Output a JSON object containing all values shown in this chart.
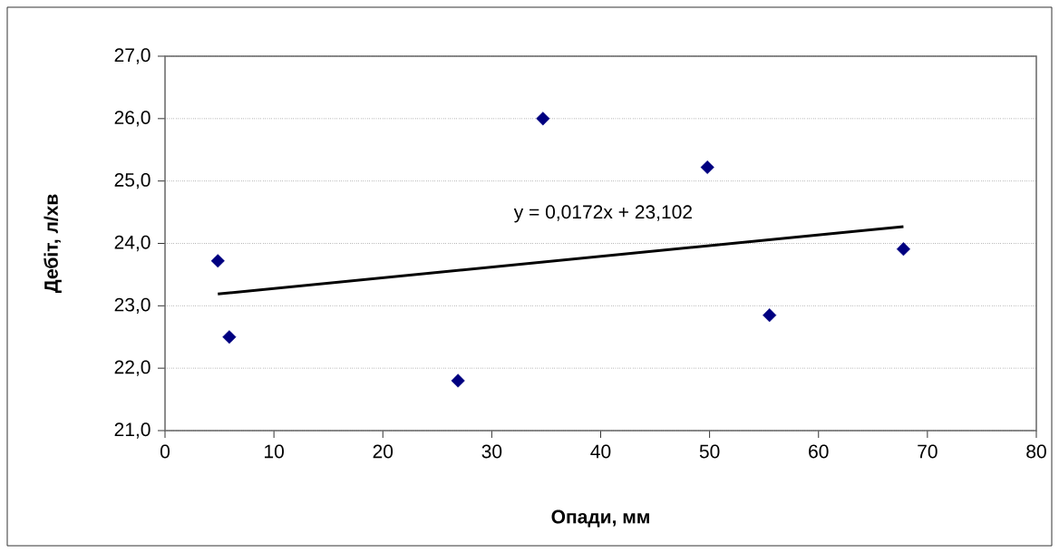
{
  "chart_data": {
    "type": "scatter",
    "xlabel": "Опади, мм",
    "ylabel": "Дебіт, л/хв",
    "xlim": [
      0,
      80
    ],
    "xticks": [
      0,
      10,
      20,
      30,
      40,
      50,
      60,
      70,
      80
    ],
    "ylim": [
      21,
      27
    ],
    "yticks": [
      {
        "value": 21,
        "label": "21,0"
      },
      {
        "value": 22,
        "label": "22,0"
      },
      {
        "value": 23,
        "label": "23,0"
      },
      {
        "value": 24,
        "label": "24,0"
      },
      {
        "value": 25,
        "label": "25,0"
      },
      {
        "value": 26,
        "label": "26,0"
      },
      {
        "value": 27,
        "label": "27,0"
      }
    ],
    "grid": "y",
    "series": [
      {
        "marker": "diamond",
        "color": "#000080",
        "x": [
          4.85,
          5.9,
          26.9,
          34.7,
          49.8,
          55.5,
          67.8
        ],
        "values": [
          23.72,
          22.5,
          21.8,
          26.0,
          25.22,
          22.85,
          23.91
        ]
      },
      {
        "type": "line",
        "marker": "none",
        "color": "#000000",
        "x": [
          4.85,
          67.8
        ],
        "values": [
          23.19,
          24.27
        ]
      }
    ],
    "annotations": [
      "y = 0,0172x + 23,102"
    ]
  }
}
